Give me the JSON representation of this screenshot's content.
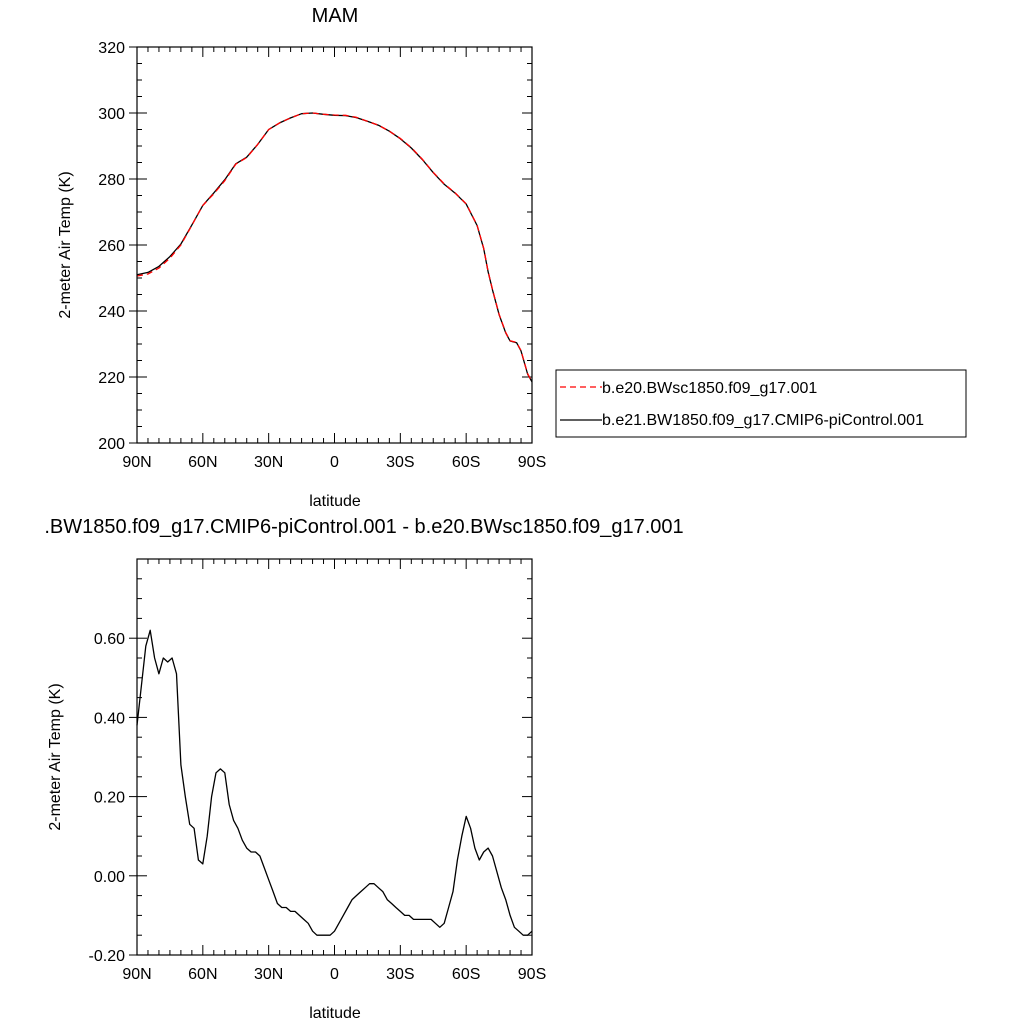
{
  "chart_data": [
    {
      "type": "line",
      "title": "MAM",
      "xlabel": "latitude",
      "ylabel": "2-meter Air Temp (K)",
      "xlim": [
        90,
        -90
      ],
      "ylim": [
        200,
        320
      ],
      "xtick_labels": [
        "90N",
        "60N",
        "30N",
        "0",
        "30S",
        "60S",
        "90S"
      ],
      "ytick_labels": [
        "200",
        "220",
        "240",
        "260",
        "280",
        "300",
        "320"
      ],
      "legend": {
        "placement": "right",
        "entries": [
          {
            "label": "b.e20.BWsc1850.f09_g17.001",
            "color": "#ff0000",
            "dash": "dashed"
          },
          {
            "label": "b.e21.BW1850.f09_g17.CMIP6-piControl.001",
            "color": "#000000",
            "dash": "solid"
          }
        ]
      },
      "series": [
        {
          "name": "b.e20.BWsc1850.f09_g17.001",
          "color": "#ff0000",
          "x": [
            90,
            85,
            80,
            75,
            70,
            65,
            60,
            55,
            50,
            45,
            40,
            35,
            30,
            25,
            20,
            15,
            10,
            5,
            0,
            -5,
            -10,
            -15,
            -20,
            -25,
            -30,
            -35,
            -40,
            -45,
            -50,
            -55,
            -60,
            -65,
            -68,
            -70,
            -72,
            -75,
            -78,
            -80,
            -83,
            -85,
            -88,
            -90
          ],
          "y": [
            250.6,
            251.2,
            253.0,
            256.0,
            260.0,
            266.0,
            272.0,
            275.5,
            279.5,
            284.5,
            286.5,
            290.5,
            295.0,
            297.0,
            298.5,
            299.8,
            300.0,
            299.6,
            299.4,
            299.3,
            298.7,
            297.5,
            296.3,
            294.5,
            292.3,
            289.5,
            286.0,
            282.0,
            278.5,
            275.8,
            272.5,
            266.0,
            259.0,
            252.0,
            246.5,
            239.0,
            233.5,
            231.0,
            230.5,
            228.0,
            221.0,
            218.6
          ]
        },
        {
          "name": "b.e21.BW1850.f09_g17.CMIP6-piControl.001",
          "color": "#000000",
          "x": [
            90,
            85,
            80,
            75,
            70,
            65,
            60,
            55,
            50,
            45,
            40,
            35,
            30,
            25,
            20,
            15,
            10,
            5,
            0,
            -5,
            -10,
            -15,
            -20,
            -25,
            -30,
            -35,
            -40,
            -45,
            -50,
            -55,
            -60,
            -65,
            -68,
            -70,
            -72,
            -75,
            -78,
            -80,
            -83,
            -85,
            -88,
            -90
          ],
          "y": [
            251.0,
            251.7,
            253.5,
            256.5,
            260.3,
            266.1,
            272.0,
            275.8,
            279.8,
            284.6,
            286.6,
            290.5,
            295.0,
            297.0,
            298.5,
            299.8,
            300.0,
            299.6,
            299.3,
            299.2,
            298.6,
            297.5,
            296.3,
            294.5,
            292.2,
            289.4,
            285.9,
            281.9,
            278.4,
            275.7,
            272.4,
            265.9,
            258.9,
            251.9,
            246.4,
            238.9,
            233.4,
            230.9,
            230.4,
            227.9,
            220.9,
            218.5
          ]
        }
      ]
    },
    {
      "type": "line",
      "title": ".BW1850.f09_g17.CMIP6-piControl.001 - b.e20.BWsc1850.f09_g17.001",
      "xlabel": "latitude",
      "ylabel": "2-meter Air Temp (K)",
      "xlim": [
        90,
        -90
      ],
      "ylim": [
        -0.2,
        0.8
      ],
      "xtick_labels": [
        "90N",
        "60N",
        "30N",
        "0",
        "30S",
        "60S",
        "90S"
      ],
      "ytick_labels": [
        "-0.20",
        "0.00",
        "0.20",
        "0.40",
        "0.60"
      ],
      "series": [
        {
          "color": "#000000",
          "x": [
            90,
            88,
            86,
            84,
            82,
            80,
            78,
            76,
            74,
            72,
            70,
            68,
            66,
            64,
            62,
            60,
            58,
            56,
            54,
            52,
            50,
            48,
            46,
            44,
            42,
            40,
            38,
            36,
            34,
            32,
            30,
            28,
            26,
            24,
            22,
            20,
            18,
            16,
            14,
            12,
            10,
            8,
            6,
            4,
            2,
            0,
            -2,
            -4,
            -6,
            -8,
            -10,
            -12,
            -14,
            -16,
            -18,
            -20,
            -22,
            -24,
            -26,
            -28,
            -30,
            -32,
            -34,
            -36,
            -38,
            -40,
            -42,
            -44,
            -46,
            -48,
            -50,
            -52,
            -54,
            -56,
            -58,
            -60,
            -62,
            -64,
            -66,
            -68,
            -70,
            -72,
            -74,
            -76,
            -78,
            -80,
            -82,
            -84,
            -86,
            -88,
            -90
          ],
          "y": [
            0.38,
            0.48,
            0.58,
            0.62,
            0.55,
            0.51,
            0.55,
            0.54,
            0.55,
            0.51,
            0.28,
            0.2,
            0.13,
            0.12,
            0.04,
            0.03,
            0.1,
            0.2,
            0.26,
            0.27,
            0.26,
            0.18,
            0.14,
            0.12,
            0.09,
            0.07,
            0.06,
            0.06,
            0.05,
            0.02,
            -0.01,
            -0.04,
            -0.07,
            -0.08,
            -0.08,
            -0.09,
            -0.09,
            -0.1,
            -0.11,
            -0.12,
            -0.14,
            -0.15,
            -0.15,
            -0.15,
            -0.15,
            -0.14,
            -0.12,
            -0.1,
            -0.08,
            -0.06,
            -0.05,
            -0.04,
            -0.03,
            -0.02,
            -0.02,
            -0.03,
            -0.04,
            -0.06,
            -0.07,
            -0.08,
            -0.09,
            -0.1,
            -0.1,
            -0.11,
            -0.11,
            -0.11,
            -0.11,
            -0.11,
            -0.12,
            -0.13,
            -0.12,
            -0.08,
            -0.04,
            0.04,
            0.1,
            0.15,
            0.12,
            0.07,
            0.04,
            0.06,
            0.07,
            0.05,
            0.01,
            -0.03,
            -0.06,
            -0.1,
            -0.13,
            -0.14,
            -0.15,
            -0.15,
            -0.14
          ]
        }
      ]
    }
  ]
}
